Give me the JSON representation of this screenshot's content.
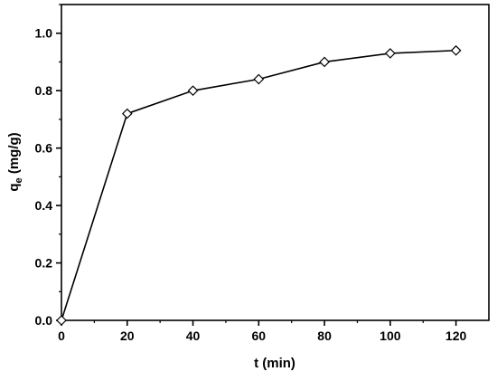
{
  "chart_data": {
    "type": "line",
    "xlabel": "t (min)",
    "ylabel": {
      "main": "q",
      "subscript": "e",
      "unit": " (mg/g)"
    },
    "xlim": [
      0,
      130
    ],
    "ylim": [
      0,
      1.1
    ],
    "xticks": [
      "0",
      "20",
      "40",
      "60",
      "80",
      "100",
      "120"
    ],
    "yticks": [
      "0.0",
      "0.2",
      "0.4",
      "0.6",
      "0.8",
      "1.0"
    ],
    "grid": false,
    "legend": "none",
    "marker": "diamond-open",
    "line_color": "#000000",
    "series": [
      {
        "x": [
          0,
          20,
          40,
          60,
          80,
          100,
          120
        ],
        "y": [
          0.0,
          0.72,
          0.8,
          0.84,
          0.9,
          0.93,
          0.94
        ]
      }
    ]
  }
}
